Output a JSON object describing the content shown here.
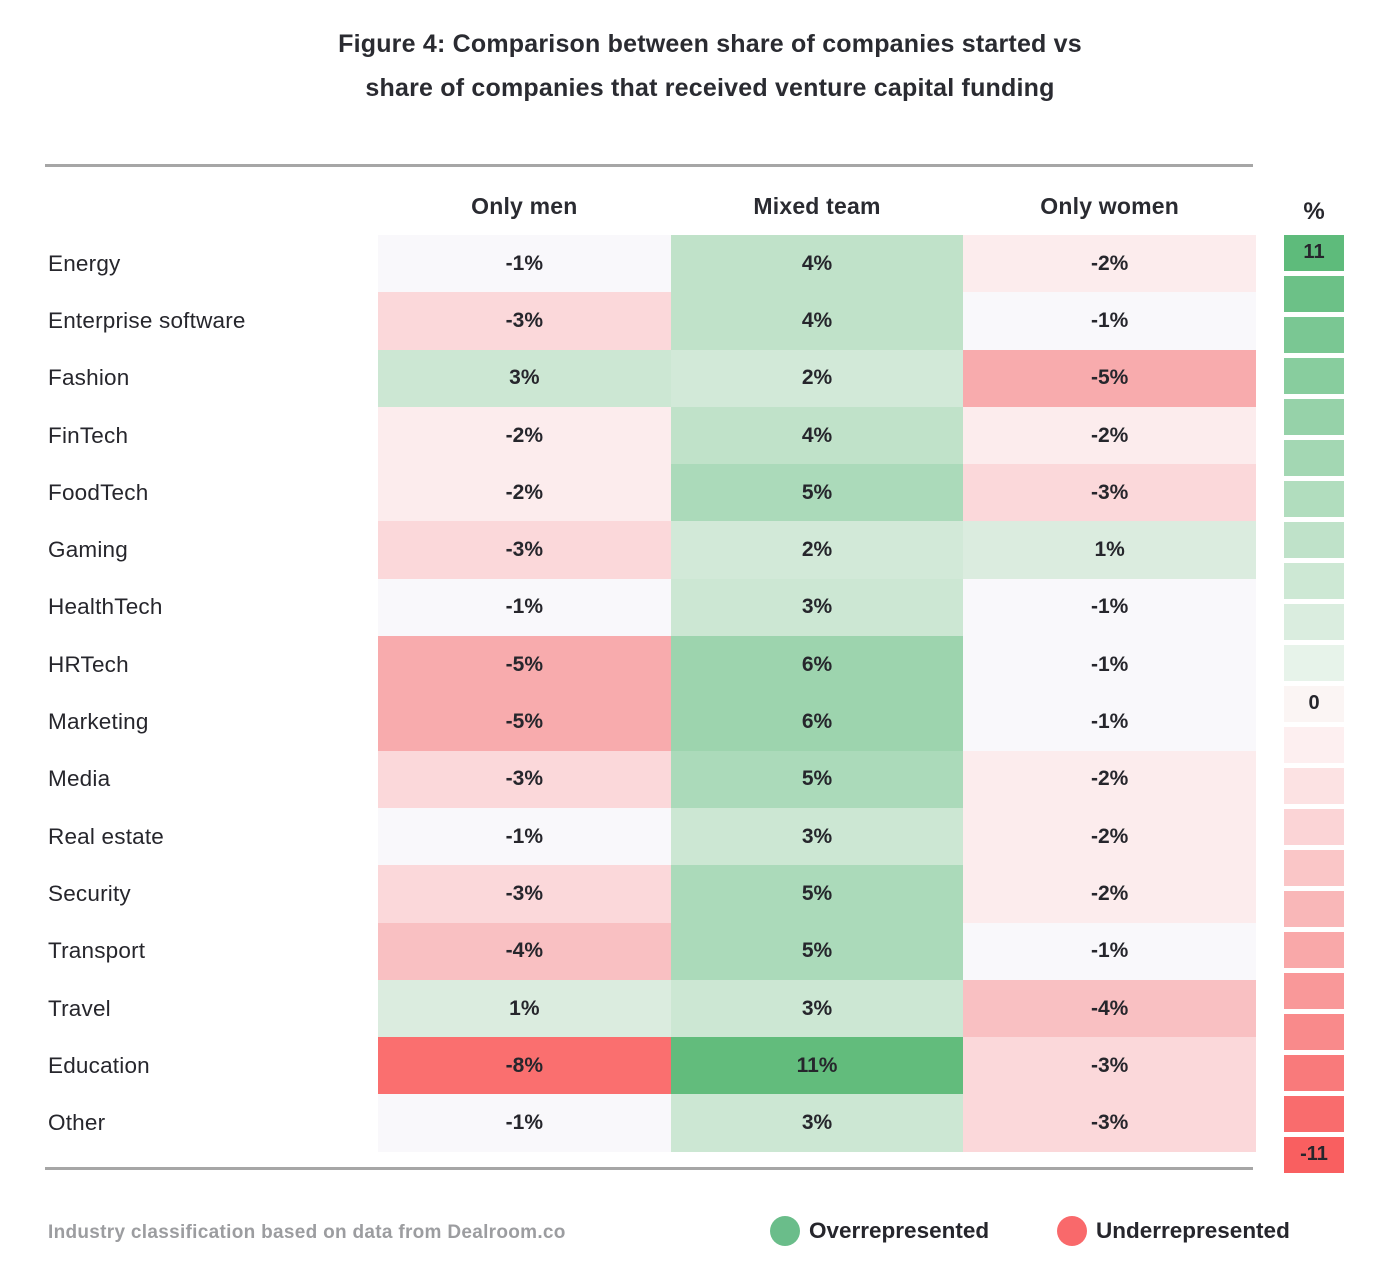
{
  "title": {
    "line1": "Figure 4: Comparison between share of companies started vs",
    "line2": "share of companies that received venture capital funding"
  },
  "columns": [
    "Only men",
    "Mixed team",
    "Only women"
  ],
  "rows": [
    {
      "label": "Energy",
      "values": [
        -1,
        4,
        -2
      ]
    },
    {
      "label": "Enterprise software",
      "values": [
        -3,
        4,
        -1
      ]
    },
    {
      "label": "Fashion",
      "values": [
        3,
        2,
        -5
      ]
    },
    {
      "label": "FinTech",
      "values": [
        -2,
        4,
        -2
      ]
    },
    {
      "label": "FoodTech",
      "values": [
        -2,
        5,
        -3
      ]
    },
    {
      "label": "Gaming",
      "values": [
        -3,
        2,
        1
      ]
    },
    {
      "label": "HealthTech",
      "values": [
        -1,
        3,
        -1
      ]
    },
    {
      "label": "HRTech",
      "values": [
        -5,
        6,
        -1
      ]
    },
    {
      "label": "Marketing",
      "values": [
        -5,
        6,
        -1
      ]
    },
    {
      "label": "Media",
      "values": [
        -3,
        5,
        -2
      ]
    },
    {
      "label": "Real estate",
      "values": [
        -1,
        3,
        -2
      ]
    },
    {
      "label": "Security",
      "values": [
        -3,
        5,
        -2
      ]
    },
    {
      "label": "Transport",
      "values": [
        -4,
        5,
        -1
      ]
    },
    {
      "label": "Travel",
      "values": [
        1,
        3,
        -4
      ]
    },
    {
      "label": "Education",
      "values": [
        -8,
        11,
        -3
      ]
    },
    {
      "label": "Other",
      "values": [
        -1,
        3,
        -3
      ]
    }
  ],
  "value_colors": {
    "-8": "#fa6f6f",
    "-5": "#f8abad",
    "-4": "#f9c0c2",
    "-3": "#fbd8da",
    "-2": "#fceced",
    "-1": "#f9f8fb",
    "1": "#dbecdf",
    "2": "#d2e9d8",
    "3": "#cce7d3",
    "4": "#c0e2c9",
    "5": "#abdaba",
    "6": "#9dd4ae",
    "11": "#62bc7c"
  },
  "scale": {
    "unit": "%",
    "steps": [
      {
        "value": 11,
        "color": "#5ebb7b",
        "label": "11"
      },
      {
        "value": 10,
        "color": "#6cc187"
      },
      {
        "value": 9,
        "color": "#7ac793"
      },
      {
        "value": 8,
        "color": "#88cd9e"
      },
      {
        "value": 7,
        "color": "#96d2a9"
      },
      {
        "value": 6,
        "color": "#a3d7b3"
      },
      {
        "value": 5,
        "color": "#b1ddbe"
      },
      {
        "value": 4,
        "color": "#bfe2c9"
      },
      {
        "value": 3,
        "color": "#cde8d4"
      },
      {
        "value": 2,
        "color": "#daeddf"
      },
      {
        "value": 1,
        "color": "#e7f3ea"
      },
      {
        "value": 0,
        "color": "#fbf5f4",
        "label": "0"
      },
      {
        "value": -1,
        "color": "#fdeff0"
      },
      {
        "value": -2,
        "color": "#fce2e3"
      },
      {
        "value": -3,
        "color": "#fbd4d6"
      },
      {
        "value": -4,
        "color": "#fac6c7"
      },
      {
        "value": -5,
        "color": "#f9b7b8"
      },
      {
        "value": -6,
        "color": "#f9a8a9"
      },
      {
        "value": -7,
        "color": "#f99899"
      },
      {
        "value": -8,
        "color": "#f98a8b"
      },
      {
        "value": -9,
        "color": "#f97a7b"
      },
      {
        "value": -10,
        "color": "#f96c6d"
      },
      {
        "value": -11,
        "color": "#f95f60",
        "label": "-11"
      }
    ]
  },
  "footer": {
    "source": "Industry classification based on data from Dealroom.co",
    "legend": [
      {
        "label": "Overrepresented",
        "color": "#6abd8a"
      },
      {
        "label": "Underrepresented",
        "color": "#f9696b"
      }
    ]
  },
  "chart_data": {
    "type": "heatmap",
    "title": "Figure 4: Comparison between share of companies started vs share of companies that received venture capital funding",
    "categories": [
      "Energy",
      "Enterprise software",
      "Fashion",
      "FinTech",
      "FoodTech",
      "Gaming",
      "HealthTech",
      "HRTech",
      "Marketing",
      "Media",
      "Real estate",
      "Security",
      "Transport",
      "Travel",
      "Education",
      "Other"
    ],
    "columns": [
      "Only men",
      "Mixed team",
      "Only women"
    ],
    "values_pct": [
      [
        -1,
        4,
        -2
      ],
      [
        -3,
        4,
        -1
      ],
      [
        3,
        2,
        -5
      ],
      [
        -2,
        4,
        -2
      ],
      [
        -2,
        5,
        -3
      ],
      [
        -3,
        2,
        1
      ],
      [
        -1,
        3,
        -1
      ],
      [
        -5,
        6,
        -1
      ],
      [
        -5,
        6,
        -1
      ],
      [
        -3,
        5,
        -2
      ],
      [
        -1,
        3,
        -2
      ],
      [
        -3,
        5,
        -2
      ],
      [
        -4,
        5,
        -1
      ],
      [
        1,
        3,
        -4
      ],
      [
        -8,
        11,
        -3
      ],
      [
        -1,
        3,
        -3
      ]
    ],
    "colorbar": {
      "min": -11,
      "max": 11,
      "unit": "%",
      "positive_color": "#5ebb7b",
      "negative_color": "#f95f60"
    },
    "legend": [
      "Overrepresented",
      "Underrepresented"
    ],
    "source_note": "Industry classification based on data from Dealroom.co"
  }
}
